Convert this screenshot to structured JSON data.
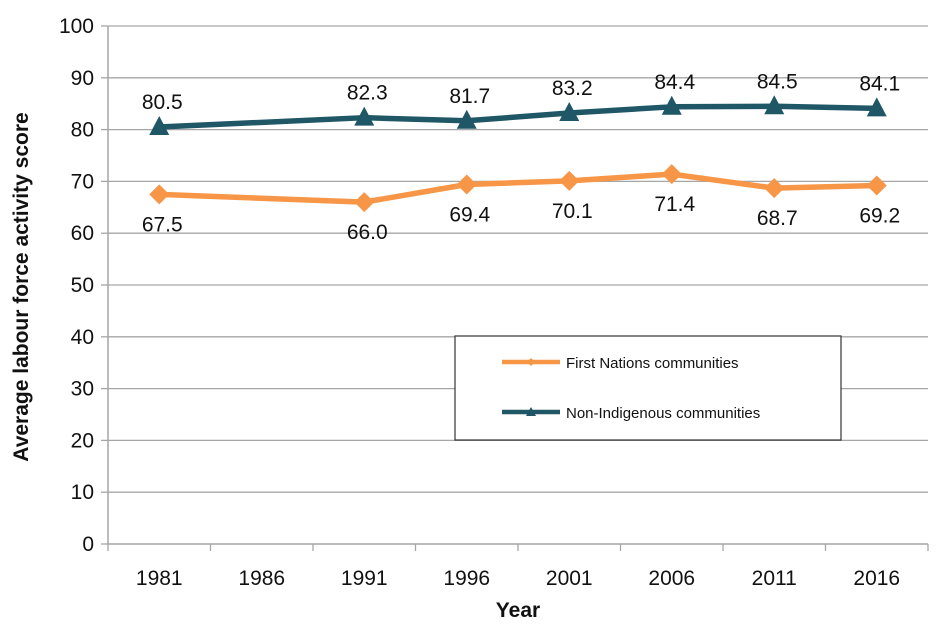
{
  "chart_data": {
    "type": "line",
    "title": "",
    "xlabel": "Year",
    "ylabel": "Average labour force activity score",
    "categories": [
      "1981",
      "1986",
      "1991",
      "1996",
      "2001",
      "2006",
      "2011",
      "2016"
    ],
    "ylim": [
      0,
      100
    ],
    "yticks": [
      "0",
      "10",
      "20",
      "30",
      "40",
      "50",
      "60",
      "70",
      "80",
      "90",
      "100"
    ],
    "grid": true,
    "legend_position": "center-right",
    "series": [
      {
        "name": "First Nations communities",
        "color": "#F79646",
        "marker": "diamond",
        "values": [
          67.5,
          null,
          66.0,
          69.4,
          70.1,
          71.4,
          68.7,
          69.2
        ],
        "labels": [
          "67.5",
          "",
          "66.0",
          "69.4",
          "70.1",
          "71.4",
          "68.7",
          "69.2"
        ],
        "label_position": "below"
      },
      {
        "name": "Non-Indigenous communities",
        "color": "#1F5767",
        "marker": "triangle",
        "values": [
          80.5,
          null,
          82.3,
          81.7,
          83.2,
          84.4,
          84.5,
          84.1
        ],
        "labels": [
          "80.5",
          "",
          "82.3",
          "81.7",
          "83.2",
          "84.4",
          "84.5",
          "84.1"
        ],
        "label_position": "above"
      }
    ]
  }
}
